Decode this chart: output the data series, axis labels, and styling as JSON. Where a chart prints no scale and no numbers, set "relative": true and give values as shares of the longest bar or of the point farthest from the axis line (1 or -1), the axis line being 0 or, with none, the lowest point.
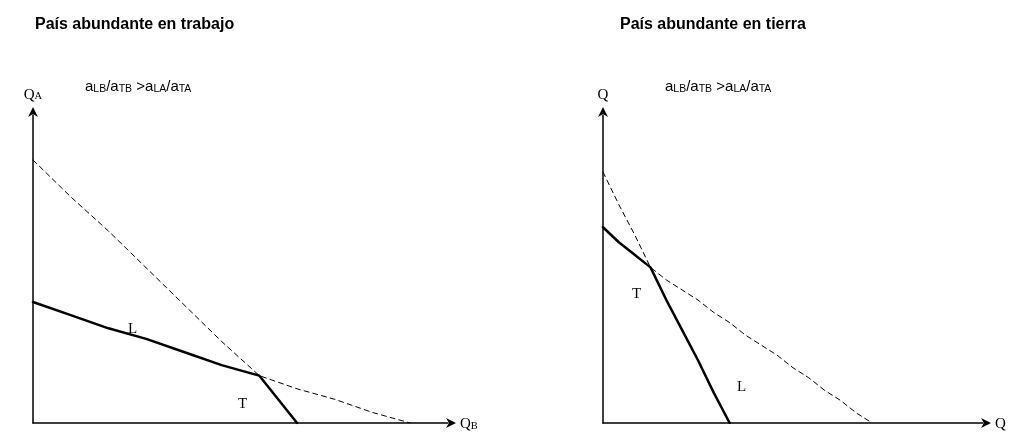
{
  "chart_data": [
    {
      "type": "line",
      "title": "País abundante en trabajo",
      "xlabel": "Q$_{B}$",
      "ylabel": "Q$_{A}$",
      "relative": true,
      "marker": "none",
      "annotations": [
        "a$_{LB}$/a$_{TB}$ >a$_{LA}$/a$_{TA}$",
        "L",
        "T"
      ],
      "categories": [
        null,
        null,
        null,
        null,
        null,
        null,
        null,
        null,
        null,
        null,
        null,
        null
      ],
      "series": [
        {
          "color": "#000000",
          "line_style": "dashed",
          "values": [
            1,
            0.86,
            0.73,
            0.59,
            0.45,
            0.31,
            0.18,
            0.13,
            0.09,
            0.04,
            0,
            null
          ]
        },
        {
          "color": "#000000",
          "line_style": "solid",
          "values": [
            0.46,
            0.41,
            0.36,
            0.32,
            0.27,
            0.22,
            0.18,
            0,
            null,
            null,
            null,
            null
          ]
        }
      ]
    },
    {
      "type": "line",
      "title": "País abundante en tierra",
      "xlabel": "Q",
      "ylabel": "Q",
      "relative": true,
      "marker": "none",
      "annotations": [
        "a$_{LB}$/a$_{TB}$ >a$_{LA}$/a$_{TA}$",
        "T",
        "L"
      ],
      "categories": [
        null,
        null,
        null,
        null,
        null,
        null,
        null,
        null,
        null,
        null,
        null,
        null,
        null,
        null,
        null,
        null,
        null,
        null,
        null,
        null,
        null,
        null,
        null,
        null,
        null
      ],
      "series": [
        {
          "color": "#000000",
          "line_style": "dashed",
          "values": [
            1,
            0.87,
            0.75,
            0.62,
            0.57,
            0.53,
            0.49,
            0.44,
            0.4,
            0.35,
            0.31,
            0.27,
            0.22,
            0.18,
            0.13,
            0.09,
            0.04,
            0,
            null,
            null,
            null,
            null,
            null,
            null,
            null
          ]
        },
        {
          "color": "#000000",
          "line_style": "solid",
          "values": [
            0.78,
            0.72,
            0.67,
            0.62,
            0.49,
            0.37,
            0.25,
            0.12,
            0,
            null,
            null,
            null,
            null,
            null,
            null,
            null,
            null,
            null,
            null,
            null,
            null,
            null,
            null,
            null,
            null
          ]
        }
      ]
    }
  ]
}
